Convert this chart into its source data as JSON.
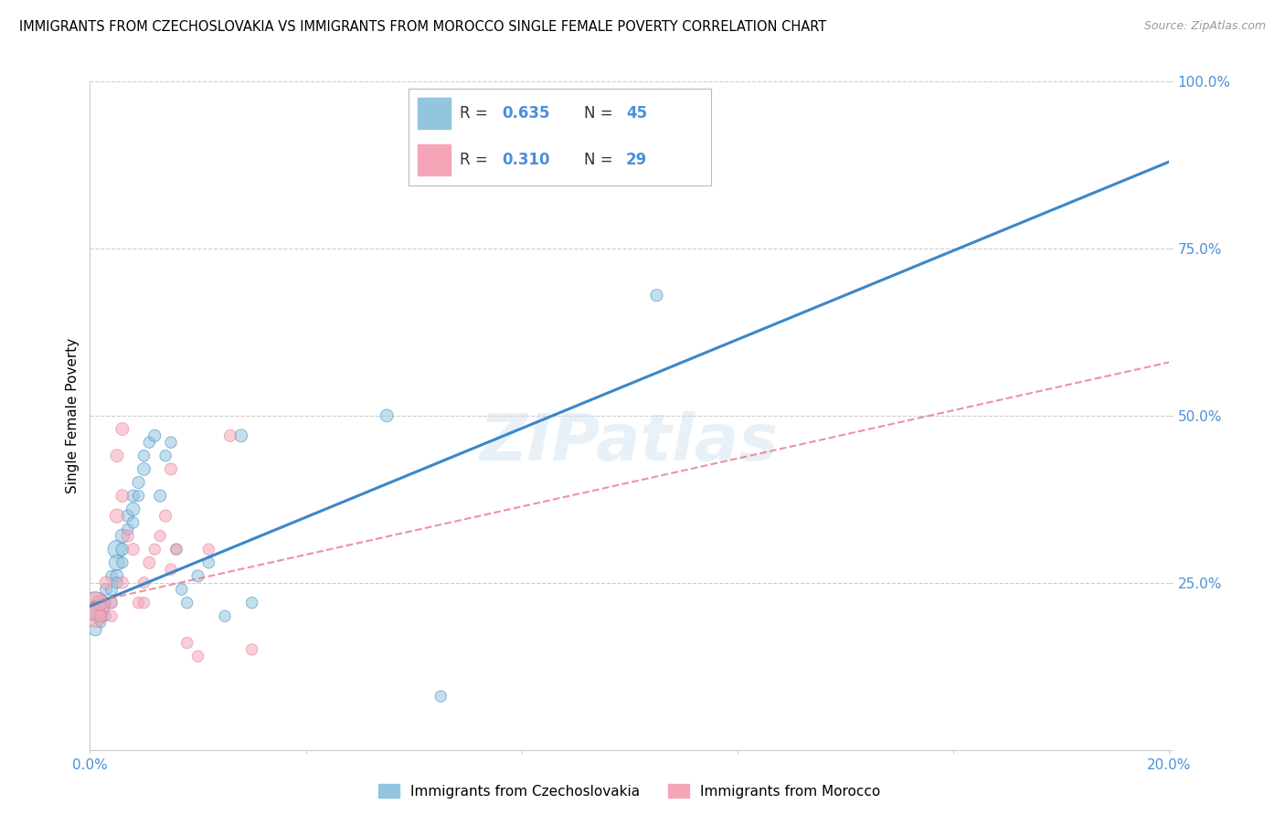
{
  "title": "IMMIGRANTS FROM CZECHOSLOVAKIA VS IMMIGRANTS FROM MOROCCO SINGLE FEMALE POVERTY CORRELATION CHART",
  "source": "Source: ZipAtlas.com",
  "ylabel": "Single Female Poverty",
  "xlim": [
    0.0,
    0.2
  ],
  "ylim": [
    0.0,
    1.0
  ],
  "R1": 0.635,
  "N1": 45,
  "R2": 0.31,
  "N2": 29,
  "color1": "#92c5de",
  "color2": "#f4a6b8",
  "line_color1": "#3a87c8",
  "line_color2": "#e8788a",
  "legend_label1": "Immigrants from Czechoslovakia",
  "legend_label2": "Immigrants from Morocco",
  "watermark": "ZIPatlas",
  "axis_color": "#4a90d9",
  "title_fontsize": 10.5,
  "blue_line_x0": 0.0,
  "blue_line_y0": 0.215,
  "blue_line_x1": 0.2,
  "blue_line_y1": 0.88,
  "pink_line_x0": 0.0,
  "pink_line_y0": 0.22,
  "pink_line_x1": 0.2,
  "pink_line_y1": 0.58,
  "czecho_x": [
    0.001,
    0.001,
    0.001,
    0.002,
    0.002,
    0.002,
    0.003,
    0.003,
    0.003,
    0.004,
    0.004,
    0.004,
    0.005,
    0.005,
    0.005,
    0.005,
    0.006,
    0.006,
    0.006,
    0.007,
    0.007,
    0.008,
    0.008,
    0.008,
    0.009,
    0.009,
    0.01,
    0.01,
    0.011,
    0.012,
    0.013,
    0.014,
    0.015,
    0.016,
    0.017,
    0.018,
    0.02,
    0.022,
    0.025,
    0.028,
    0.03,
    0.055,
    0.065,
    0.105,
    0.001
  ],
  "czecho_y": [
    0.215,
    0.2,
    0.18,
    0.22,
    0.2,
    0.19,
    0.24,
    0.22,
    0.2,
    0.26,
    0.24,
    0.22,
    0.3,
    0.28,
    0.26,
    0.25,
    0.32,
    0.3,
    0.28,
    0.35,
    0.33,
    0.38,
    0.36,
    0.34,
    0.4,
    0.38,
    0.42,
    0.44,
    0.46,
    0.47,
    0.38,
    0.44,
    0.46,
    0.3,
    0.24,
    0.22,
    0.26,
    0.28,
    0.2,
    0.47,
    0.22,
    0.5,
    0.08,
    0.68,
    0.215
  ],
  "czecho_size": [
    60,
    80,
    100,
    80,
    100,
    60,
    90,
    70,
    60,
    80,
    90,
    70,
    200,
    150,
    100,
    80,
    120,
    100,
    80,
    90,
    80,
    90,
    110,
    80,
    90,
    80,
    100,
    80,
    80,
    90,
    90,
    80,
    80,
    80,
    80,
    80,
    90,
    80,
    80,
    100,
    80,
    100,
    80,
    90,
    500
  ],
  "morocco_x": [
    0.001,
    0.001,
    0.002,
    0.002,
    0.003,
    0.004,
    0.004,
    0.005,
    0.005,
    0.006,
    0.006,
    0.007,
    0.008,
    0.009,
    0.01,
    0.011,
    0.012,
    0.013,
    0.014,
    0.015,
    0.016,
    0.018,
    0.02,
    0.022,
    0.026,
    0.03,
    0.006,
    0.01,
    0.015
  ],
  "morocco_y": [
    0.215,
    0.2,
    0.22,
    0.2,
    0.25,
    0.2,
    0.22,
    0.44,
    0.35,
    0.38,
    0.25,
    0.32,
    0.3,
    0.22,
    0.25,
    0.28,
    0.3,
    0.32,
    0.35,
    0.27,
    0.3,
    0.16,
    0.14,
    0.3,
    0.47,
    0.15,
    0.48,
    0.22,
    0.42
  ],
  "morocco_size": [
    500,
    300,
    150,
    100,
    100,
    80,
    90,
    100,
    120,
    100,
    90,
    90,
    90,
    80,
    80,
    90,
    80,
    80,
    90,
    80,
    80,
    80,
    80,
    80,
    90,
    80,
    100,
    80,
    90
  ]
}
